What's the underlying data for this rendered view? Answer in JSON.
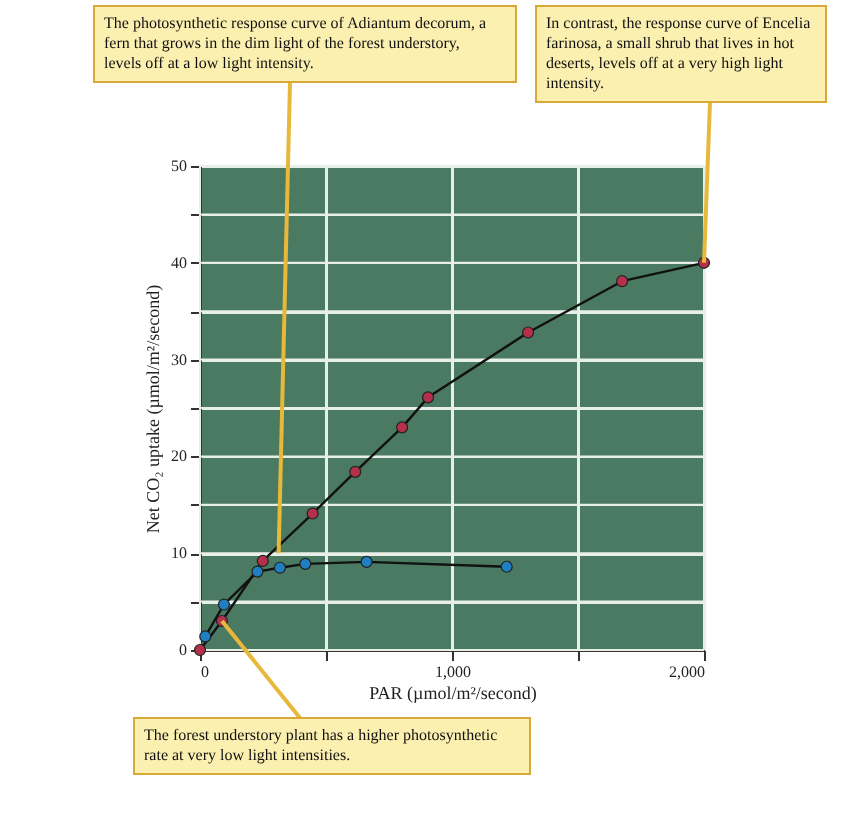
{
  "chart_data": {
    "type": "line",
    "xlabel": "PAR (µmol/m²/second)",
    "ylabel": "Net CO₂ uptake (µmol/m²/second)",
    "series": [
      {
        "color": "#b5304a",
        "x": [
          0,
          87,
          249,
          447,
          616,
          802,
          905,
          1302,
          1675,
          2000
        ],
        "values": [
          0,
          3,
          9.2,
          14.1,
          18.4,
          23,
          26.1,
          32.8,
          38.1,
          40
        ]
      },
      {
        "color": "#1f7fc0",
        "x": [
          21,
          95,
          228,
          317,
          418,
          661,
          1217
        ],
        "values": [
          1.4,
          4.7,
          8.1,
          8.5,
          8.9,
          9.1,
          8.6
        ]
      }
    ],
    "xlim": [
      0,
      2000
    ],
    "ylim": [
      0,
      50
    ],
    "xticks": [
      0,
      {
        "value": 500,
        "label": null
      },
      {
        "value": 1000,
        "label": "1,000"
      },
      {
        "value": 1500,
        "label": null
      },
      {
        "value": 2000,
        "label": "2,000"
      }
    ],
    "yticks": [
      0,
      {
        "value": 5,
        "label": null
      },
      10,
      {
        "value": 15,
        "label": null
      },
      20,
      {
        "value": 25,
        "label": null
      },
      30,
      {
        "value": 35,
        "label": null
      },
      40,
      {
        "value": 45,
        "label": null
      },
      50
    ],
    "grid": true,
    "marker": "circle",
    "line_style": "solid",
    "annotations": [
      {
        "text": "The photosynthetic response curve of Adiantum decorum, a fern that grows in the dim light of the forest understory, levels off at a low light intensity.",
        "x": 312,
        "y": 10
      },
      {
        "text": "In contrast, the response curve of Encelia farinosa, a small shrub that lives in hot deserts, levels off at a very high light intensity.",
        "x": 2000,
        "y": 40
      },
      {
        "text": "The forest understory plant has a higher photosynthetic rate at very low light intensities.",
        "x": 87,
        "y": 3
      }
    ]
  }
}
